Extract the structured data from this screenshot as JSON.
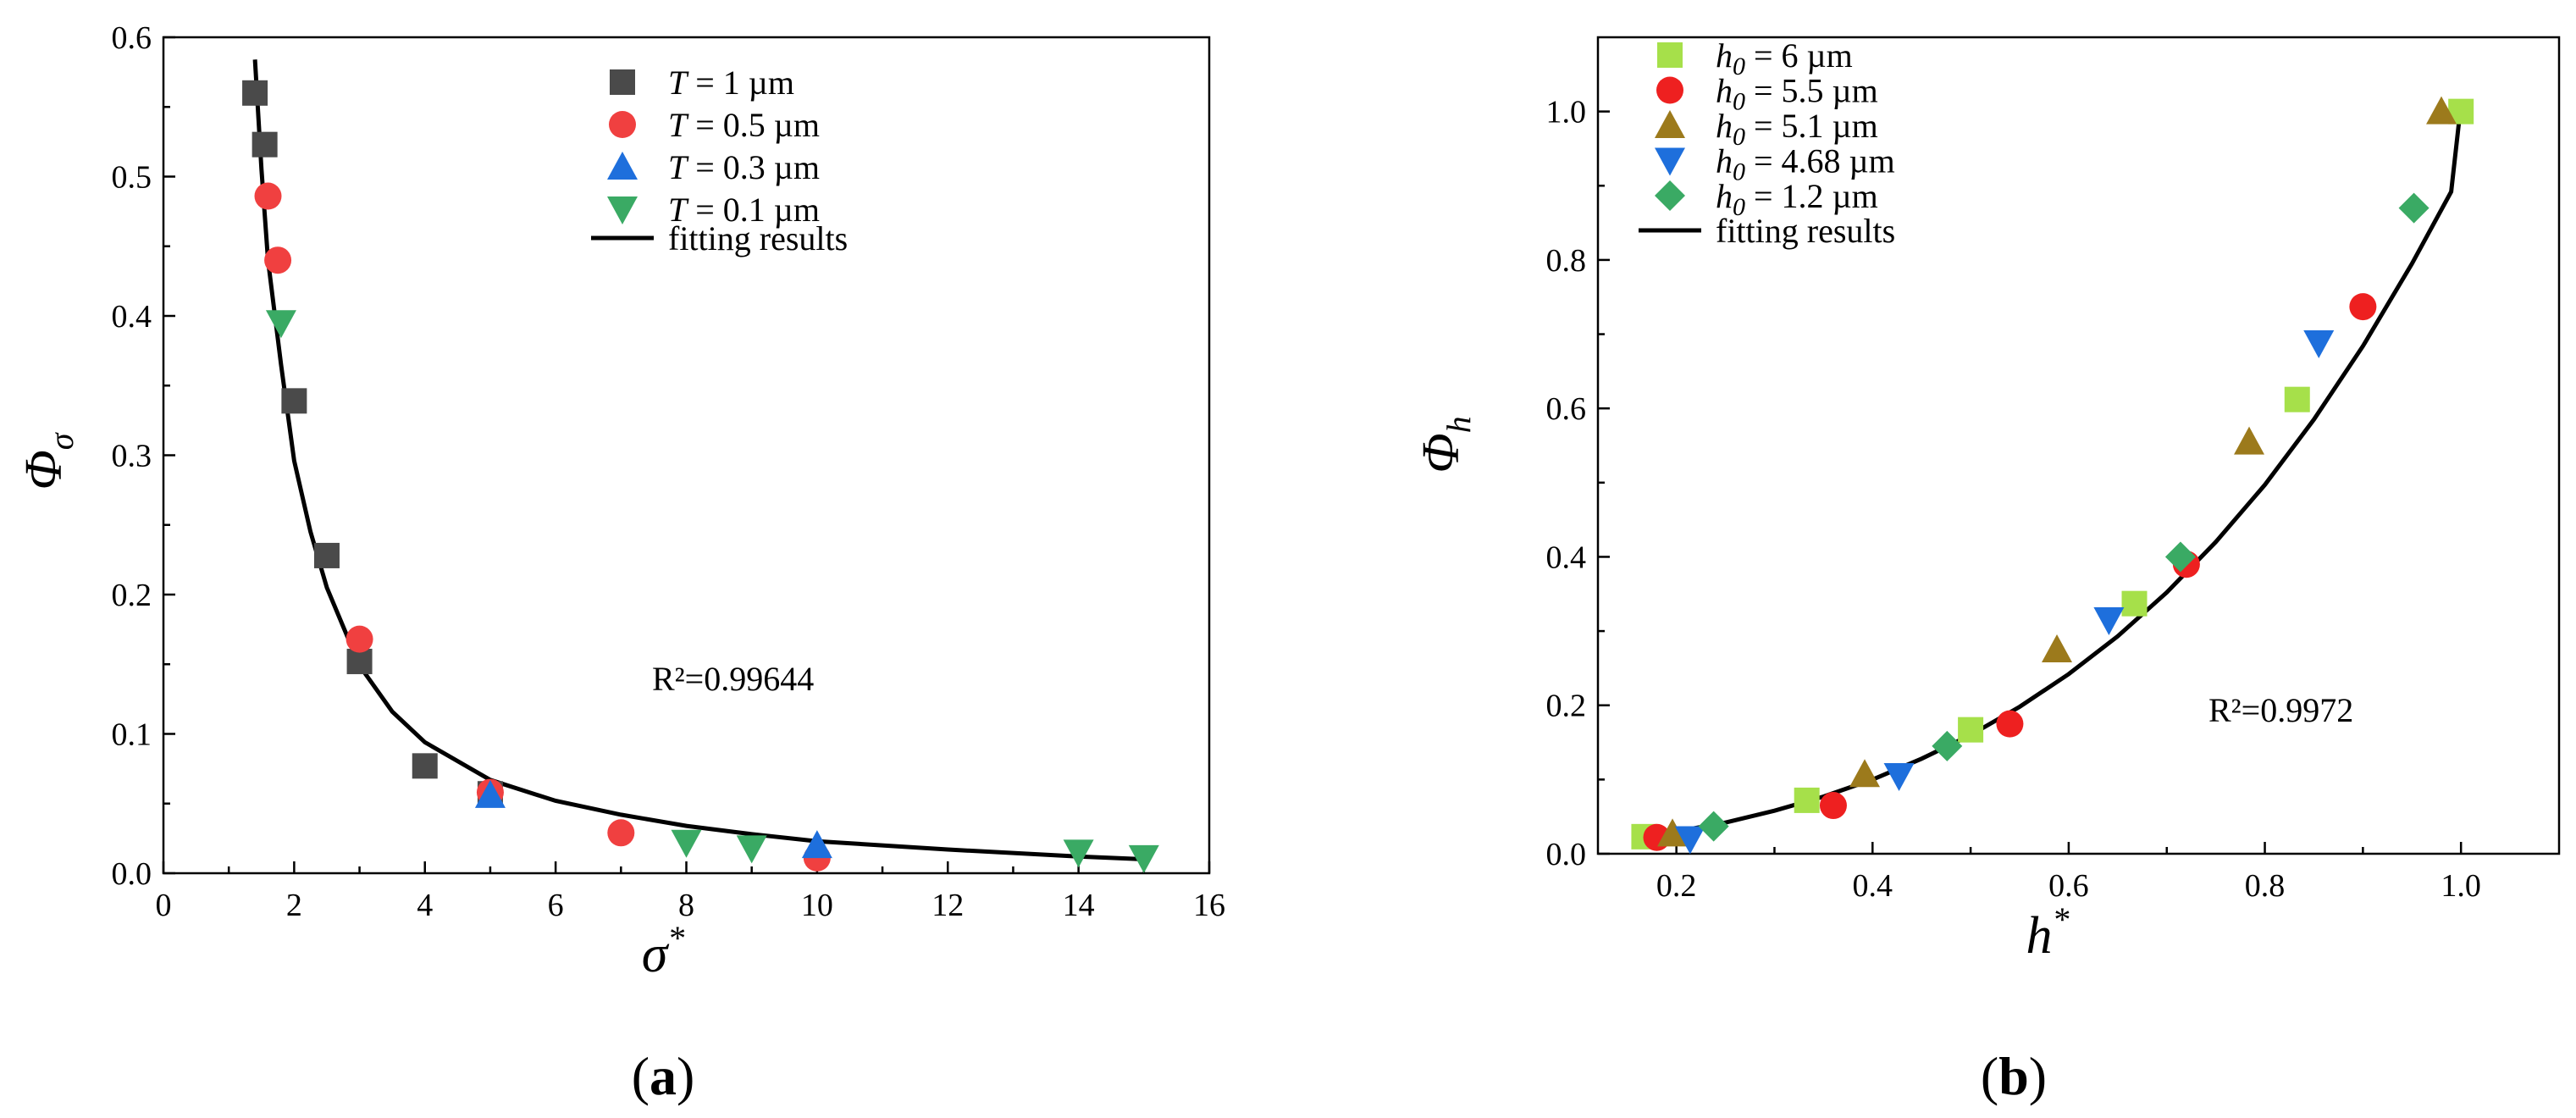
{
  "chart_data": [
    {
      "type": "scatter",
      "panel_label": "a",
      "xlabel": "σ",
      "xlabel_sup": "*",
      "ylabel": "Φ",
      "ylabel_sub": "σ",
      "xlim": [
        0,
        16
      ],
      "ylim": [
        0,
        0.6
      ],
      "xticks": [
        0,
        2,
        4,
        6,
        8,
        10,
        12,
        14,
        16
      ],
      "yticks": [
        0.0,
        0.1,
        0.2,
        0.3,
        0.4,
        0.5,
        0.6
      ],
      "r2_text": "R²=0.99644",
      "legend_location": "top-right",
      "series": [
        {
          "legend_var": "T",
          "legend_rest": " = 1 µm",
          "marker": "square",
          "color": "#4a4a4a",
          "points": [
            [
              1.4,
              0.56
            ],
            [
              1.55,
              0.523
            ],
            [
              2.0,
              0.339
            ],
            [
              2.5,
              0.228
            ],
            [
              3.0,
              0.152
            ],
            [
              4.0,
              0.077
            ],
            [
              5.0,
              0.057
            ]
          ]
        },
        {
          "legend_var": "T",
          "legend_rest": " = 0.5 µm",
          "marker": "circle",
          "color": "#f04040",
          "points": [
            [
              1.6,
              0.486
            ],
            [
              1.75,
              0.44
            ],
            [
              3.0,
              0.168
            ],
            [
              5.0,
              0.058
            ],
            [
              7.0,
              0.029
            ],
            [
              10.0,
              0.011
            ]
          ]
        },
        {
          "legend_var": "T",
          "legend_rest": " = 0.3 µm",
          "marker": "triangle-up",
          "color": "#1e6fdc",
          "points": [
            [
              5.0,
              0.056
            ],
            [
              10.0,
              0.02
            ]
          ]
        },
        {
          "legend_var": "T",
          "legend_rest": " = 0.1 µm",
          "marker": "triangle-down",
          "color": "#3aaa64",
          "points": [
            [
              1.8,
              0.395
            ],
            [
              8.0,
              0.022
            ],
            [
              9.0,
              0.018
            ],
            [
              14.0,
              0.015
            ],
            [
              15.0,
              0.011
            ]
          ]
        }
      ],
      "fit": {
        "legend": "fitting results",
        "color": "#000000",
        "points": [
          [
            1.4,
            0.584
          ],
          [
            1.5,
            0.505
          ],
          [
            1.6,
            0.44
          ],
          [
            1.8,
            0.365
          ],
          [
            2.0,
            0.296
          ],
          [
            2.25,
            0.245
          ],
          [
            2.5,
            0.205
          ],
          [
            3.0,
            0.149
          ],
          [
            3.5,
            0.116
          ],
          [
            4.0,
            0.094
          ],
          [
            5.0,
            0.067
          ],
          [
            6.0,
            0.052
          ],
          [
            7.0,
            0.042
          ],
          [
            8.0,
            0.034
          ],
          [
            9.0,
            0.028
          ],
          [
            10.0,
            0.023
          ],
          [
            12.0,
            0.017
          ],
          [
            14.0,
            0.012
          ],
          [
            15.0,
            0.01
          ]
        ]
      }
    },
    {
      "type": "scatter",
      "panel_label": "b",
      "xlabel": "h",
      "xlabel_sup": "*",
      "ylabel": "Φ",
      "ylabel_sub": "h",
      "xlim": [
        0.12,
        1.1
      ],
      "ylim": [
        0,
        1.1
      ],
      "xticks": [
        0.2,
        0.4,
        0.6,
        0.8,
        1.0
      ],
      "yticks": [
        0.0,
        0.2,
        0.4,
        0.6,
        0.8,
        1.0
      ],
      "r2_text": "R²=0.9972",
      "legend_location": "top-left",
      "series": [
        {
          "legend_var": "h",
          "legend_sub": "0",
          "legend_rest": " = 6 µm",
          "marker": "square",
          "color": "#a6e04a",
          "points": [
            [
              0.167,
              0.023
            ],
            [
              0.333,
              0.072
            ],
            [
              0.5,
              0.167
            ],
            [
              0.667,
              0.337
            ],
            [
              0.833,
              0.612
            ],
            [
              1.0,
              1.0
            ]
          ]
        },
        {
          "legend_var": "h",
          "legend_sub": "0",
          "legend_rest": " = 5.5 µm",
          "marker": "circle",
          "color": "#ee2020",
          "points": [
            [
              0.18,
              0.022
            ],
            [
              0.36,
              0.065
            ],
            [
              0.54,
              0.175
            ],
            [
              0.72,
              0.39
            ],
            [
              0.9,
              0.737
            ]
          ]
        },
        {
          "legend_var": "h",
          "legend_sub": "0",
          "legend_rest": " = 5.1 µm",
          "marker": "triangle-up",
          "color": "#9c7a1c",
          "points": [
            [
              0.196,
              0.027
            ],
            [
              0.392,
              0.107
            ],
            [
              0.588,
              0.275
            ],
            [
              0.784,
              0.555
            ],
            [
              0.98,
              1.0
            ]
          ]
        },
        {
          "legend_var": "h",
          "legend_sub": "0",
          "legend_rest": " = 4.68 µm",
          "marker": "triangle-down",
          "color": "#1e6fdc",
          "points": [
            [
              0.214,
              0.02
            ],
            [
              0.427,
              0.105
            ],
            [
              0.641,
              0.315
            ],
            [
              0.855,
              0.688
            ]
          ]
        },
        {
          "legend_var": "h",
          "legend_sub": "0",
          "legend_rest": " = 1.2 µm",
          "marker": "diamond",
          "color": "#3aaa64",
          "points": [
            [
              0.238,
              0.037
            ],
            [
              0.476,
              0.145
            ],
            [
              0.714,
              0.4
            ],
            [
              0.952,
              0.87
            ]
          ]
        }
      ],
      "fit": {
        "legend": "fitting results",
        "color": "#000000",
        "points": [
          [
            0.17,
            0.022
          ],
          [
            0.2,
            0.03
          ],
          [
            0.25,
            0.042
          ],
          [
            0.3,
            0.058
          ],
          [
            0.35,
            0.077
          ],
          [
            0.4,
            0.1
          ],
          [
            0.45,
            0.128
          ],
          [
            0.5,
            0.16
          ],
          [
            0.55,
            0.198
          ],
          [
            0.6,
            0.242
          ],
          [
            0.65,
            0.293
          ],
          [
            0.7,
            0.352
          ],
          [
            0.75,
            0.42
          ],
          [
            0.8,
            0.497
          ],
          [
            0.85,
            0.585
          ],
          [
            0.9,
            0.684
          ],
          [
            0.95,
            0.795
          ],
          [
            0.99,
            0.892
          ],
          [
            1.0,
            1.01
          ]
        ]
      }
    }
  ]
}
